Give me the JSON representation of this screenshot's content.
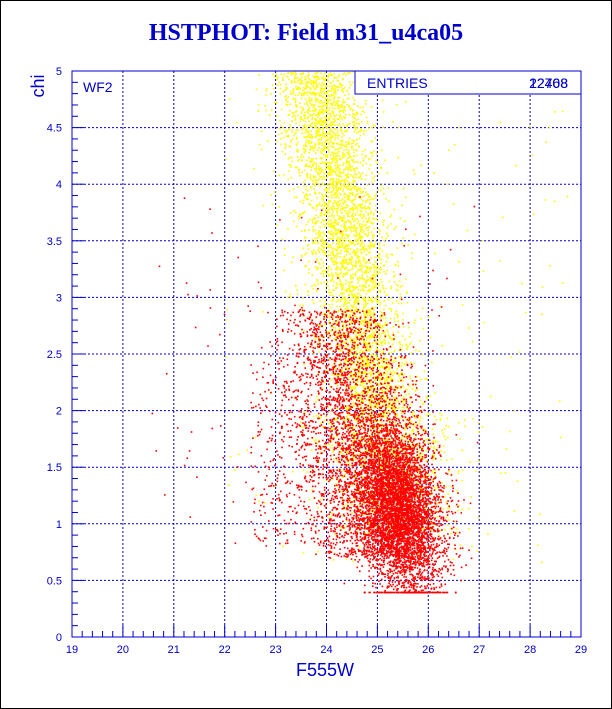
{
  "chart_data": {
    "type": "scatter",
    "title": "HSTPHOT: Field m31_u4ca05",
    "xlabel": "F555W",
    "ylabel": "chi",
    "xlim": [
      19,
      29
    ],
    "ylim": [
      0,
      5
    ],
    "x_ticks": [
      "19",
      "20",
      "21",
      "22",
      "23",
      "24",
      "25",
      "26",
      "27",
      "28",
      "29"
    ],
    "y_ticks": [
      "0",
      "0.5",
      "1",
      "1.5",
      "2",
      "2.5",
      "3",
      "3.5",
      "4",
      "4.5",
      "5"
    ],
    "grid": true,
    "panel_label": "WF2",
    "stats_box": {
      "label": "ENTRIES",
      "values": [
        "12708",
        "22468"
      ]
    },
    "series": [
      {
        "color": "#ffff00",
        "approx_count": 12708,
        "distribution": "points mostly F555W 23-26, chi 1-5; densest near F555W 24.5, chi 3"
      },
      {
        "color": "#ff0000",
        "approx_count": 22468,
        "distribution": "points mostly F555W 23-26.8, chi 0.4-2.5; densest near F555W 25.4, chi 1.1"
      }
    ]
  },
  "colors": {
    "frame": "#0000cc",
    "title": "#0000cc",
    "grid": "#0000cc",
    "axis_text": "#0000cc"
  }
}
